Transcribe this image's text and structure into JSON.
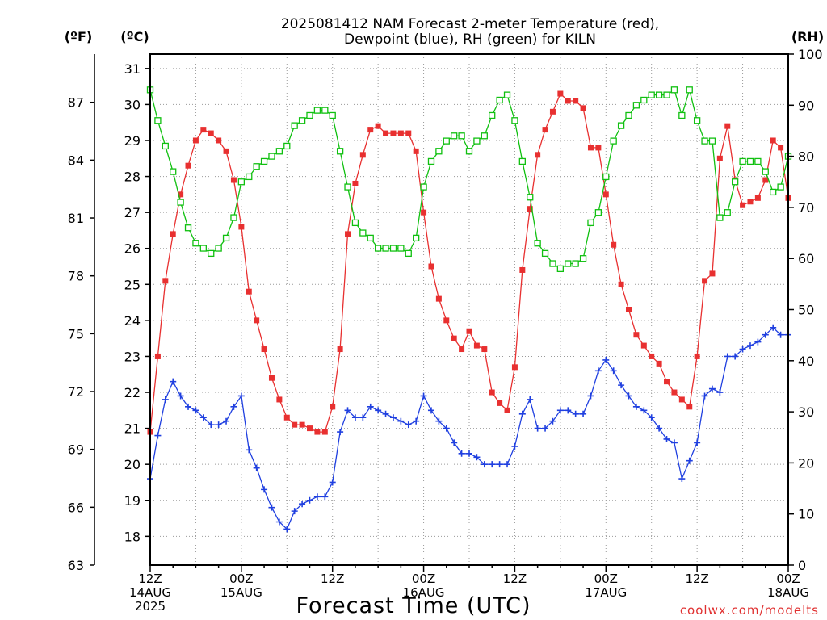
{
  "chart_data": {
    "type": "line",
    "title": [
      "2025081412 NAM Forecast 2-meter Temperature (red),",
      "Dewpoint (blue), RH (green) for KILN"
    ],
    "xlabel": "Forecast Time (UTC)",
    "credit": "coolwx.com/modelts",
    "units": {
      "fahrenheit": "(ºF)",
      "celsius": "(ºC)",
      "rh": "(RH)"
    },
    "x_hours_range": [
      0,
      84
    ],
    "x_ticks": [
      {
        "hour": 0,
        "lines": [
          "12Z",
          "14AUG",
          "2025"
        ]
      },
      {
        "hour": 12,
        "lines": [
          "00Z",
          "15AUG"
        ]
      },
      {
        "hour": 24,
        "lines": [
          "12Z"
        ]
      },
      {
        "hour": 36,
        "lines": [
          "00Z",
          "16AUG"
        ]
      },
      {
        "hour": 48,
        "lines": [
          "12Z"
        ]
      },
      {
        "hour": 60,
        "lines": [
          "00Z",
          "17AUG"
        ]
      },
      {
        "hour": 72,
        "lines": [
          "12Z"
        ]
      },
      {
        "hour": 84,
        "lines": [
          "00Z",
          "18AUG"
        ]
      }
    ],
    "celsius_axis": {
      "range": [
        17.2,
        31.4
      ],
      "ticks": [
        18,
        19,
        20,
        21,
        22,
        23,
        24,
        25,
        26,
        27,
        28,
        29,
        30,
        31
      ]
    },
    "fahrenheit_axis": {
      "range": [
        63,
        89.5
      ],
      "ticks": [
        63,
        66,
        69,
        72,
        75,
        78,
        81,
        84,
        87
      ]
    },
    "rh_axis": {
      "range": [
        0,
        100
      ],
      "ticks": [
        0,
        10,
        20,
        30,
        40,
        50,
        60,
        70,
        80,
        90,
        100
      ]
    },
    "grid": true,
    "series": [
      {
        "name": "Temperature",
        "axis": "celsius",
        "color": "#e83030",
        "marker": "filled-square",
        "values": [
          [
            0,
            20.9
          ],
          [
            1,
            23.0
          ],
          [
            2,
            25.1
          ],
          [
            3,
            26.4
          ],
          [
            4,
            27.5
          ],
          [
            5,
            28.3
          ],
          [
            6,
            29.0
          ],
          [
            7,
            29.3
          ],
          [
            8,
            29.2
          ],
          [
            9,
            29.0
          ],
          [
            10,
            28.7
          ],
          [
            11,
            27.9
          ],
          [
            12,
            26.6
          ],
          [
            13,
            24.8
          ],
          [
            14,
            24.0
          ],
          [
            15,
            23.2
          ],
          [
            16,
            22.4
          ],
          [
            17,
            21.8
          ],
          [
            18,
            21.3
          ],
          [
            19,
            21.1
          ],
          [
            20,
            21.1
          ],
          [
            21,
            21.0
          ],
          [
            22,
            20.9
          ],
          [
            23,
            20.9
          ],
          [
            24,
            21.6
          ],
          [
            25,
            23.2
          ],
          [
            26,
            26.4
          ],
          [
            27,
            27.8
          ],
          [
            28,
            28.6
          ],
          [
            29,
            29.3
          ],
          [
            30,
            29.4
          ],
          [
            31,
            29.2
          ],
          [
            32,
            29.2
          ],
          [
            33,
            29.2
          ],
          [
            34,
            29.2
          ],
          [
            35,
            28.7
          ],
          [
            36,
            27.0
          ],
          [
            37,
            25.5
          ],
          [
            38,
            24.6
          ],
          [
            39,
            24.0
          ],
          [
            40,
            23.5
          ],
          [
            41,
            23.2
          ],
          [
            42,
            23.7
          ],
          [
            43,
            23.3
          ],
          [
            44,
            23.2
          ],
          [
            45,
            22.0
          ],
          [
            46,
            21.7
          ],
          [
            47,
            21.5
          ],
          [
            48,
            22.7
          ],
          [
            49,
            25.4
          ],
          [
            50,
            27.1
          ],
          [
            51,
            28.6
          ],
          [
            52,
            29.3
          ],
          [
            53,
            29.8
          ],
          [
            54,
            30.3
          ],
          [
            55,
            30.1
          ],
          [
            56,
            30.1
          ],
          [
            57,
            29.9
          ],
          [
            58,
            28.8
          ],
          [
            59,
            28.8
          ],
          [
            60,
            27.5
          ],
          [
            61,
            26.1
          ],
          [
            62,
            25.0
          ],
          [
            63,
            24.3
          ],
          [
            64,
            23.6
          ],
          [
            65,
            23.3
          ],
          [
            66,
            23.0
          ],
          [
            67,
            22.8
          ],
          [
            68,
            22.3
          ],
          [
            69,
            22.0
          ],
          [
            70,
            21.8
          ],
          [
            71,
            21.6
          ],
          [
            72,
            23.0
          ],
          [
            73,
            25.1
          ],
          [
            74,
            25.3
          ],
          [
            75,
            28.5
          ],
          [
            76,
            29.4
          ],
          [
            77,
            27.9
          ],
          [
            78,
            27.2
          ],
          [
            79,
            27.3
          ],
          [
            80,
            27.4
          ],
          [
            81,
            27.9
          ],
          [
            82,
            29.0
          ],
          [
            83,
            28.8
          ],
          [
            84,
            27.4
          ]
        ]
      },
      {
        "name": "Dewpoint",
        "axis": "celsius",
        "color": "#2040e0",
        "marker": "plus",
        "values": [
          [
            0,
            19.6
          ],
          [
            1,
            20.8
          ],
          [
            2,
            21.8
          ],
          [
            3,
            22.3
          ],
          [
            4,
            21.9
          ],
          [
            5,
            21.6
          ],
          [
            6,
            21.5
          ],
          [
            7,
            21.3
          ],
          [
            8,
            21.1
          ],
          [
            9,
            21.1
          ],
          [
            10,
            21.2
          ],
          [
            11,
            21.6
          ],
          [
            12,
            21.9
          ],
          [
            13,
            20.4
          ],
          [
            14,
            19.9
          ],
          [
            15,
            19.3
          ],
          [
            16,
            18.8
          ],
          [
            17,
            18.4
          ],
          [
            18,
            18.2
          ],
          [
            19,
            18.7
          ],
          [
            20,
            18.9
          ],
          [
            21,
            19.0
          ],
          [
            22,
            19.1
          ],
          [
            23,
            19.1
          ],
          [
            24,
            19.5
          ],
          [
            25,
            20.9
          ],
          [
            26,
            21.5
          ],
          [
            27,
            21.3
          ],
          [
            28,
            21.3
          ],
          [
            29,
            21.6
          ],
          [
            30,
            21.5
          ],
          [
            31,
            21.4
          ],
          [
            32,
            21.3
          ],
          [
            33,
            21.2
          ],
          [
            34,
            21.1
          ],
          [
            35,
            21.2
          ],
          [
            36,
            21.9
          ],
          [
            37,
            21.5
          ],
          [
            38,
            21.2
          ],
          [
            39,
            21.0
          ],
          [
            40,
            20.6
          ],
          [
            41,
            20.3
          ],
          [
            42,
            20.3
          ],
          [
            43,
            20.2
          ],
          [
            44,
            20.0
          ],
          [
            45,
            20.0
          ],
          [
            46,
            20.0
          ],
          [
            47,
            20.0
          ],
          [
            48,
            20.5
          ],
          [
            49,
            21.4
          ],
          [
            50,
            21.8
          ],
          [
            51,
            21.0
          ],
          [
            52,
            21.0
          ],
          [
            53,
            21.2
          ],
          [
            54,
            21.5
          ],
          [
            55,
            21.5
          ],
          [
            56,
            21.4
          ],
          [
            57,
            21.4
          ],
          [
            58,
            21.9
          ],
          [
            59,
            22.6
          ],
          [
            60,
            22.9
          ],
          [
            61,
            22.6
          ],
          [
            62,
            22.2
          ],
          [
            63,
            21.9
          ],
          [
            64,
            21.6
          ],
          [
            65,
            21.5
          ],
          [
            66,
            21.3
          ],
          [
            67,
            21.0
          ],
          [
            68,
            20.7
          ],
          [
            69,
            20.6
          ],
          [
            70,
            19.6
          ],
          [
            71,
            20.1
          ],
          [
            72,
            20.6
          ],
          [
            73,
            21.9
          ],
          [
            74,
            22.1
          ],
          [
            75,
            22.0
          ],
          [
            76,
            23.0
          ],
          [
            77,
            23.0
          ],
          [
            78,
            23.2
          ],
          [
            79,
            23.3
          ],
          [
            80,
            23.4
          ],
          [
            81,
            23.6
          ],
          [
            82,
            23.8
          ],
          [
            83,
            23.6
          ],
          [
            84,
            23.6
          ]
        ]
      },
      {
        "name": "RH",
        "axis": "rh",
        "color": "#10c010",
        "marker": "open-square",
        "values": [
          [
            0,
            93
          ],
          [
            1,
            87
          ],
          [
            2,
            82
          ],
          [
            3,
            77
          ],
          [
            4,
            71
          ],
          [
            5,
            66
          ],
          [
            6,
            63
          ],
          [
            7,
            62
          ],
          [
            8,
            61
          ],
          [
            9,
            62
          ],
          [
            10,
            64
          ],
          [
            11,
            68
          ],
          [
            12,
            75
          ],
          [
            13,
            76
          ],
          [
            14,
            78
          ],
          [
            15,
            79
          ],
          [
            16,
            80
          ],
          [
            17,
            81
          ],
          [
            18,
            82
          ],
          [
            19,
            86
          ],
          [
            20,
            87
          ],
          [
            21,
            88
          ],
          [
            22,
            89
          ],
          [
            23,
            89
          ],
          [
            24,
            88
          ],
          [
            25,
            81
          ],
          [
            26,
            74
          ],
          [
            27,
            67
          ],
          [
            28,
            65
          ],
          [
            29,
            64
          ],
          [
            30,
            62
          ],
          [
            31,
            62
          ],
          [
            32,
            62
          ],
          [
            33,
            62
          ],
          [
            34,
            61
          ],
          [
            35,
            64
          ],
          [
            36,
            74
          ],
          [
            37,
            79
          ],
          [
            38,
            81
          ],
          [
            39,
            83
          ],
          [
            40,
            84
          ],
          [
            41,
            84
          ],
          [
            42,
            81
          ],
          [
            43,
            83
          ],
          [
            44,
            84
          ],
          [
            45,
            88
          ],
          [
            46,
            91
          ],
          [
            47,
            92
          ],
          [
            48,
            87
          ],
          [
            49,
            79
          ],
          [
            50,
            72
          ],
          [
            51,
            63
          ],
          [
            52,
            61
          ],
          [
            53,
            59
          ],
          [
            54,
            58
          ],
          [
            55,
            59
          ],
          [
            56,
            59
          ],
          [
            57,
            60
          ],
          [
            58,
            67
          ],
          [
            59,
            69
          ],
          [
            60,
            76
          ],
          [
            61,
            83
          ],
          [
            62,
            86
          ],
          [
            63,
            88
          ],
          [
            64,
            90
          ],
          [
            65,
            91
          ],
          [
            66,
            92
          ],
          [
            67,
            92
          ],
          [
            68,
            92
          ],
          [
            69,
            93
          ],
          [
            70,
            88
          ],
          [
            71,
            93
          ],
          [
            72,
            87
          ],
          [
            73,
            83
          ],
          [
            74,
            83
          ],
          [
            75,
            68
          ],
          [
            76,
            69
          ],
          [
            77,
            75
          ],
          [
            78,
            79
          ],
          [
            79,
            79
          ],
          [
            80,
            79
          ],
          [
            81,
            77
          ],
          [
            82,
            73
          ],
          [
            83,
            74
          ],
          [
            84,
            80
          ]
        ]
      }
    ]
  }
}
